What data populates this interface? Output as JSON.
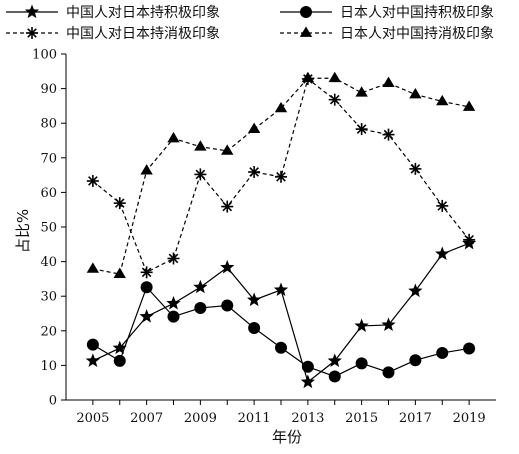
{
  "chart_data": {
    "type": "line",
    "title": "",
    "xlabel": "年份",
    "ylabel": "占比%",
    "x": [
      2005,
      2006,
      2007,
      2008,
      2009,
      2010,
      2011,
      2012,
      2013,
      2014,
      2015,
      2016,
      2017,
      2018,
      2019
    ],
    "x_tick_labels": [
      "2005",
      "2007",
      "2009",
      "2011",
      "2013",
      "2015",
      "2017",
      "2019"
    ],
    "y_ticks": [
      0,
      10,
      20,
      30,
      40,
      50,
      60,
      70,
      80,
      90,
      100
    ],
    "xlim": [
      2004,
      2020
    ],
    "ylim": [
      0,
      100
    ],
    "grid": false,
    "legend_position": "top",
    "series": [
      {
        "name": "中国人对日本持积极印象",
        "line_style": "solid",
        "marker": "star",
        "values": [
          11.3,
          15.0,
          24.1,
          27.9,
          32.6,
          38.3,
          28.9,
          31.8,
          5.2,
          11.3,
          21.4,
          21.7,
          31.5,
          42.2,
          45.3
        ]
      },
      {
        "name": "日本人对中国持积极印象",
        "line_style": "solid",
        "marker": "circle",
        "values": [
          16.0,
          11.3,
          32.6,
          24.1,
          26.6,
          27.3,
          20.8,
          15.1,
          9.6,
          6.8,
          10.6,
          8.0,
          11.5,
          13.6,
          14.9
        ]
      },
      {
        "name": "中国人对日本持消极印象",
        "line_style": "dashed",
        "marker": "asterisk",
        "values": [
          63.3,
          56.9,
          36.9,
          40.9,
          65.2,
          55.9,
          65.9,
          64.5,
          92.8,
          86.8,
          78.3,
          76.7,
          66.8,
          56.1,
          46.3
        ]
      },
      {
        "name": "日本人对中国持消极印象",
        "line_style": "dashed",
        "marker": "triangle",
        "values": [
          37.9,
          36.4,
          66.3,
          75.6,
          73.2,
          72.0,
          78.3,
          84.3,
          93.0,
          93.0,
          88.8,
          91.6,
          88.3,
          86.3,
          84.7
        ]
      }
    ]
  }
}
